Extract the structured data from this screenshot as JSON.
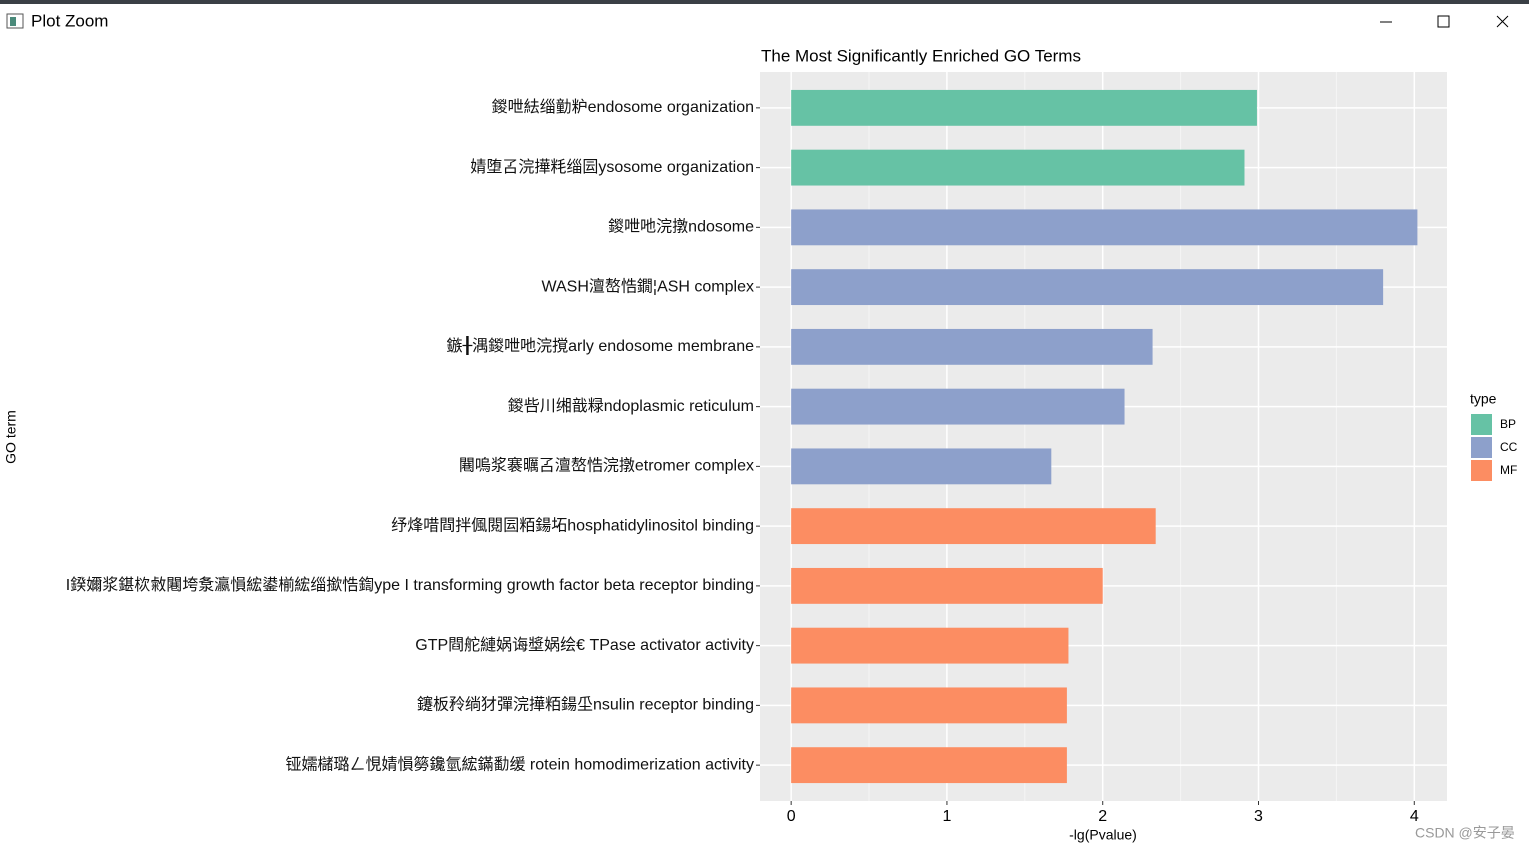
{
  "window": {
    "title": "Plot Zoom"
  },
  "watermark": "CSDN @安子晏",
  "chart_data": {
    "type": "barh",
    "title": "The Most Significantly Enriched GO Terms",
    "x_label": "-lg(Pvalue)",
    "y_label": "GO term",
    "legend_title": "type",
    "categories": [
      "鍐呭紶缁勭粐endosome organization",
      "婧堕叾浣撶粍缁囩ysosome organization",
      "鍐呭吔浣撴ndosome",
      "WASH澶嶅悎鐗¦ASH complex",
      "鏃╂湡鍐呭吔浣撹arly endosome membrane",
      "鍐呰川缃戠粶ndoplasmic reticulum",
      "闀嗚浆褰曞叾澶嶅悎浣撴etromer complex",
      "纾烽唶閰拌偑閱囩粨鍚坧hosphatidylinositol binding",
      "I鍨嬭浆鍖栨敹闀垮洜瀛愪綋鍙椾綋缁撳悎鍧ype I transforming growth factor beta receptor binding",
      "GTP閰舵縺娲诲墏娲绘€ TPase activator activity",
      "鑳板矝绱犲彈浣撶粨鍚坕nsulin receptor binding",
      "铔嬬櫧璐ㄥ悓婧愪簩鑱氫綋鏋勫缓 rotein homodimerization activity"
    ],
    "series": [
      {
        "name": "BP",
        "color": "#66c2a5",
        "values": [
          2.99,
          2.91,
          null,
          null,
          null,
          null,
          null,
          null,
          null,
          null,
          null,
          null
        ]
      },
      {
        "name": "CC",
        "color": "#8da0cb",
        "values": [
          null,
          null,
          4.02,
          3.8,
          2.32,
          2.14,
          1.67,
          null,
          null,
          null,
          null,
          null
        ]
      },
      {
        "name": "MF",
        "color": "#fc8d62",
        "values": [
          null,
          null,
          null,
          null,
          null,
          null,
          null,
          2.34,
          2.0,
          1.78,
          1.77,
          1.77
        ]
      }
    ],
    "xlim": [
      -0.2,
      4.21
    ],
    "xticks": [
      0,
      1,
      2,
      3,
      4
    ],
    "grid": true,
    "legend_position": "right"
  }
}
